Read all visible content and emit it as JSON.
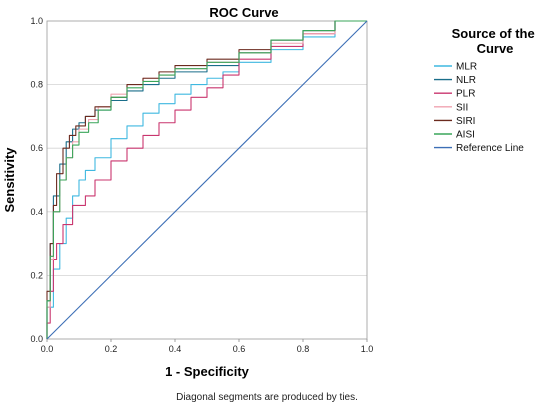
{
  "chart_data": {
    "type": "line",
    "title": "ROC Curve",
    "xlabel": "1 - Specificity",
    "ylabel": "Sensitivity",
    "xlim": [
      0.0,
      1.0
    ],
    "ylim": [
      0.0,
      1.0
    ],
    "x_ticks": [
      "0.0",
      "0.2",
      "0.4",
      "0.6",
      "0.8",
      "1.0"
    ],
    "y_ticks": [
      "0.0",
      "0.2",
      "0.4",
      "0.6",
      "0.8",
      "1.0"
    ],
    "grid": "horizontal",
    "legend": {
      "title": "Source of the Curve",
      "placement": "right"
    },
    "series": [
      {
        "name": "MLR",
        "color": "#3fb8e0",
        "points": [
          [
            0,
            0
          ],
          [
            0.02,
            0.1
          ],
          [
            0.04,
            0.22
          ],
          [
            0.06,
            0.3
          ],
          [
            0.08,
            0.38
          ],
          [
            0.1,
            0.45
          ],
          [
            0.12,
            0.5
          ],
          [
            0.15,
            0.53
          ],
          [
            0.2,
            0.57
          ],
          [
            0.25,
            0.63
          ],
          [
            0.3,
            0.67
          ],
          [
            0.35,
            0.71
          ],
          [
            0.4,
            0.74
          ],
          [
            0.45,
            0.77
          ],
          [
            0.5,
            0.8
          ],
          [
            0.55,
            0.82
          ],
          [
            0.6,
            0.84
          ],
          [
            0.7,
            0.87
          ],
          [
            0.8,
            0.91
          ],
          [
            0.9,
            0.95
          ],
          [
            1.0,
            1.0
          ]
        ]
      },
      {
        "name": "NLR",
        "color": "#1a6e8a",
        "points": [
          [
            0,
            0
          ],
          [
            0.01,
            0.12
          ],
          [
            0.02,
            0.3
          ],
          [
            0.04,
            0.45
          ],
          [
            0.06,
            0.55
          ],
          [
            0.08,
            0.62
          ],
          [
            0.1,
            0.66
          ],
          [
            0.12,
            0.68
          ],
          [
            0.15,
            0.7
          ],
          [
            0.2,
            0.72
          ],
          [
            0.25,
            0.75
          ],
          [
            0.3,
            0.78
          ],
          [
            0.35,
            0.8
          ],
          [
            0.4,
            0.82
          ],
          [
            0.5,
            0.84
          ],
          [
            0.6,
            0.86
          ],
          [
            0.7,
            0.9
          ],
          [
            0.8,
            0.94
          ],
          [
            0.9,
            0.97
          ],
          [
            1.0,
            1.0
          ]
        ]
      },
      {
        "name": "PLR",
        "color": "#c9356e",
        "points": [
          [
            0,
            0
          ],
          [
            0.01,
            0.05
          ],
          [
            0.02,
            0.15
          ],
          [
            0.03,
            0.25
          ],
          [
            0.05,
            0.3
          ],
          [
            0.08,
            0.36
          ],
          [
            0.12,
            0.42
          ],
          [
            0.15,
            0.45
          ],
          [
            0.2,
            0.5
          ],
          [
            0.25,
            0.56
          ],
          [
            0.3,
            0.6
          ],
          [
            0.35,
            0.64
          ],
          [
            0.4,
            0.68
          ],
          [
            0.45,
            0.72
          ],
          [
            0.5,
            0.76
          ],
          [
            0.55,
            0.79
          ],
          [
            0.6,
            0.83
          ],
          [
            0.7,
            0.88
          ],
          [
            0.8,
            0.92
          ],
          [
            0.9,
            0.96
          ],
          [
            1.0,
            1.0
          ]
        ]
      },
      {
        "name": "SII",
        "color": "#f0a3b0",
        "points": [
          [
            0,
            0
          ],
          [
            0.01,
            0.1
          ],
          [
            0.02,
            0.25
          ],
          [
            0.04,
            0.4
          ],
          [
            0.06,
            0.5
          ],
          [
            0.08,
            0.57
          ],
          [
            0.1,
            0.62
          ],
          [
            0.13,
            0.66
          ],
          [
            0.16,
            0.69
          ],
          [
            0.2,
            0.73
          ],
          [
            0.25,
            0.77
          ],
          [
            0.3,
            0.8
          ],
          [
            0.35,
            0.82
          ],
          [
            0.4,
            0.83
          ],
          [
            0.5,
            0.85
          ],
          [
            0.6,
            0.87
          ],
          [
            0.7,
            0.9
          ],
          [
            0.8,
            0.93
          ],
          [
            0.9,
            0.96
          ],
          [
            1.0,
            1.0
          ]
        ]
      },
      {
        "name": "SIRI",
        "color": "#6b2a1e",
        "points": [
          [
            0,
            0
          ],
          [
            0.01,
            0.15
          ],
          [
            0.02,
            0.3
          ],
          [
            0.03,
            0.42
          ],
          [
            0.05,
            0.52
          ],
          [
            0.07,
            0.6
          ],
          [
            0.09,
            0.64
          ],
          [
            0.12,
            0.67
          ],
          [
            0.15,
            0.7
          ],
          [
            0.2,
            0.73
          ],
          [
            0.25,
            0.76
          ],
          [
            0.3,
            0.8
          ],
          [
            0.35,
            0.82
          ],
          [
            0.4,
            0.84
          ],
          [
            0.5,
            0.86
          ],
          [
            0.6,
            0.88
          ],
          [
            0.7,
            0.91
          ],
          [
            0.8,
            0.94
          ],
          [
            0.9,
            0.97
          ],
          [
            1.0,
            1.0
          ]
        ]
      },
      {
        "name": "AISI",
        "color": "#3aa65a",
        "points": [
          [
            0,
            0
          ],
          [
            0.01,
            0.12
          ],
          [
            0.02,
            0.26
          ],
          [
            0.04,
            0.4
          ],
          [
            0.06,
            0.5
          ],
          [
            0.08,
            0.57
          ],
          [
            0.1,
            0.61
          ],
          [
            0.13,
            0.65
          ],
          [
            0.16,
            0.68
          ],
          [
            0.2,
            0.72
          ],
          [
            0.25,
            0.76
          ],
          [
            0.3,
            0.79
          ],
          [
            0.35,
            0.81
          ],
          [
            0.4,
            0.83
          ],
          [
            0.5,
            0.85
          ],
          [
            0.6,
            0.87
          ],
          [
            0.7,
            0.9
          ],
          [
            0.8,
            0.94
          ],
          [
            0.9,
            0.97
          ],
          [
            1.0,
            1.0
          ]
        ]
      },
      {
        "name": "Reference Line",
        "color": "#3d6fb6",
        "points": [
          [
            0,
            0
          ],
          [
            1,
            1
          ]
        ]
      }
    ],
    "footnote": "Diagonal segments are produced by ties."
  }
}
